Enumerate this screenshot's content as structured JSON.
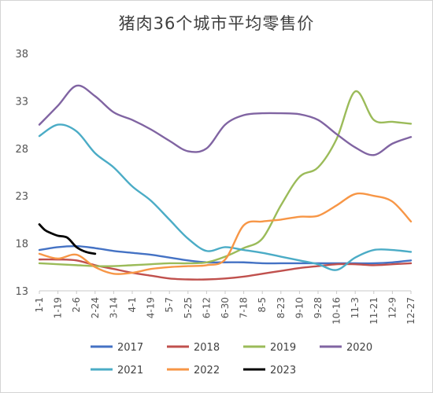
{
  "chart_data": {
    "type": "line",
    "title": "猪肉36个城市平均零售价",
    "xlabel": "",
    "ylabel": "",
    "ylim": [
      13,
      38
    ],
    "yticks": [
      13,
      18,
      23,
      28,
      33,
      38
    ],
    "x_tick_labels": [
      "1-1",
      "1-19",
      "2-6",
      "2-24",
      "3-14",
      "4-1",
      "4-19",
      "5-7",
      "5-25",
      "6-12",
      "6-30",
      "7-18",
      "8-5",
      "8-23",
      "9-10",
      "9-28",
      "10-16",
      "11-3",
      "11-21",
      "12-9",
      "12-27"
    ],
    "grid": false,
    "legend_position": "bottom",
    "series": [
      {
        "name": "2017",
        "color": "#4472C4",
        "x": [
          0,
          1,
          2,
          3,
          4,
          5,
          6,
          7,
          8,
          9,
          10,
          11,
          12,
          13,
          14,
          15,
          16,
          17,
          18,
          19,
          20
        ],
        "values": [
          17.3,
          17.6,
          17.7,
          17.5,
          17.2,
          17.0,
          16.8,
          16.5,
          16.2,
          16.0,
          16.0,
          16.0,
          15.9,
          15.9,
          15.9,
          15.9,
          15.9,
          15.9,
          15.9,
          16.0,
          16.2
        ]
      },
      {
        "name": "2018",
        "color": "#C0504D",
        "x": [
          0,
          1,
          2,
          3,
          4,
          5,
          6,
          7,
          8,
          9,
          10,
          11,
          12,
          13,
          14,
          15,
          16,
          17,
          18,
          19,
          20
        ],
        "values": [
          16.3,
          16.3,
          16.2,
          15.7,
          15.3,
          14.9,
          14.6,
          14.3,
          14.2,
          14.2,
          14.3,
          14.5,
          14.8,
          15.1,
          15.4,
          15.6,
          15.8,
          15.8,
          15.7,
          15.8,
          15.9
        ]
      },
      {
        "name": "2019",
        "color": "#9BBB59",
        "x": [
          0,
          1,
          2,
          3,
          4,
          5,
          6,
          7,
          8,
          9,
          10,
          11,
          12,
          13,
          14,
          15,
          16,
          17,
          18,
          19,
          20
        ],
        "values": [
          15.9,
          15.8,
          15.7,
          15.6,
          15.6,
          15.7,
          15.8,
          15.9,
          15.9,
          16.0,
          16.6,
          17.5,
          18.5,
          22.0,
          25.0,
          26.0,
          29.0,
          34.0,
          31.0,
          30.8,
          30.6
        ]
      },
      {
        "name": "2020",
        "color": "#8064A2",
        "x": [
          0,
          1,
          2,
          3,
          4,
          5,
          6,
          7,
          8,
          9,
          10,
          11,
          12,
          13,
          14,
          15,
          16,
          17,
          18,
          19,
          20
        ],
        "values": [
          30.5,
          32.5,
          34.6,
          33.5,
          31.8,
          31.0,
          30.0,
          28.8,
          27.7,
          28.0,
          30.5,
          31.5,
          31.7,
          31.7,
          31.6,
          31.0,
          29.5,
          28.1,
          27.3,
          28.5,
          29.2
        ]
      },
      {
        "name": "2021",
        "color": "#4BACC6",
        "x": [
          0,
          1,
          2,
          3,
          4,
          5,
          6,
          7,
          8,
          9,
          10,
          11,
          12,
          13,
          14,
          15,
          16,
          17,
          18,
          19,
          20
        ],
        "values": [
          29.3,
          30.5,
          29.8,
          27.5,
          26.0,
          24.0,
          22.5,
          20.5,
          18.5,
          17.2,
          17.6,
          17.3,
          17.0,
          16.6,
          16.2,
          15.8,
          15.2,
          16.5,
          17.3,
          17.3,
          17.1
        ]
      },
      {
        "name": "2022",
        "color": "#F79646",
        "x": [
          0,
          1,
          2,
          3,
          4,
          5,
          6,
          7,
          8,
          9,
          10,
          11,
          12,
          13,
          14,
          15,
          16,
          17,
          18,
          19,
          20
        ],
        "values": [
          16.9,
          16.4,
          16.8,
          15.5,
          14.8,
          14.9,
          15.3,
          15.5,
          15.6,
          15.7,
          16.3,
          19.9,
          20.3,
          20.5,
          20.8,
          20.9,
          22.0,
          23.2,
          23.0,
          22.4,
          20.3
        ]
      },
      {
        "name": "2023",
        "color": "#000000",
        "x": [
          0,
          0.3,
          0.6,
          1,
          1.5,
          2,
          2.5,
          3
        ],
        "values": [
          20.0,
          19.4,
          19.1,
          18.8,
          18.6,
          17.6,
          17.1,
          16.9
        ]
      }
    ]
  }
}
